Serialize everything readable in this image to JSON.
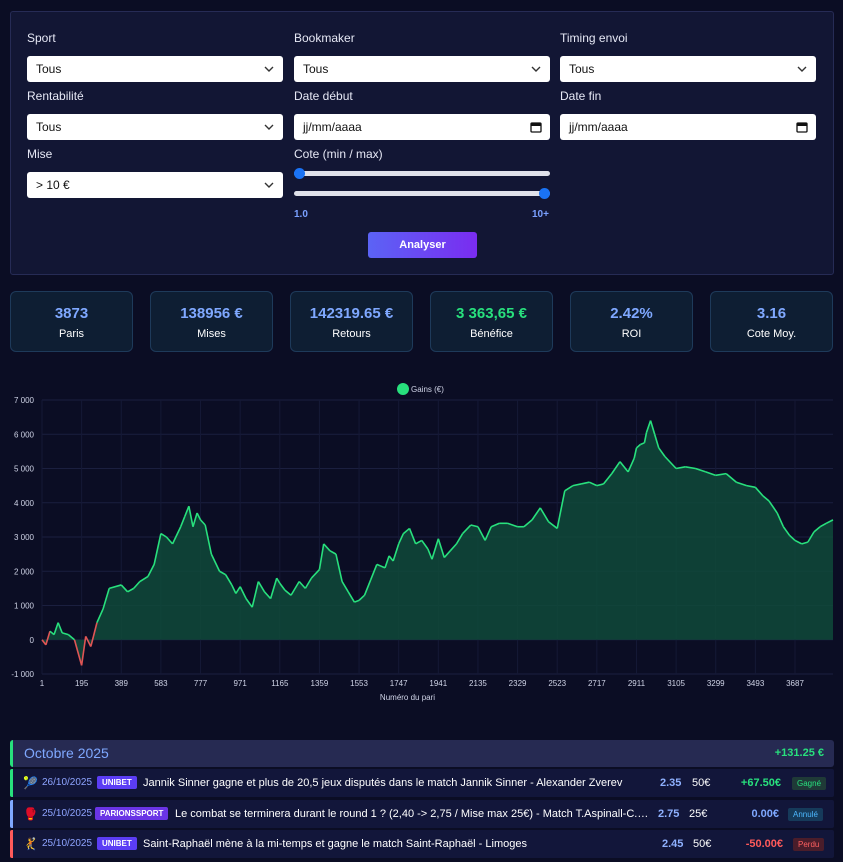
{
  "filters": {
    "sport": {
      "label": "Sport",
      "value": "Tous"
    },
    "bookmaker": {
      "label": "Bookmaker",
      "value": "Tous"
    },
    "timing": {
      "label": "Timing envoi",
      "value": "Tous"
    },
    "rentabilite": {
      "label": "Rentabilité",
      "value": "Tous"
    },
    "date_debut": {
      "label": "Date début",
      "value": "jj/mm/aaaa"
    },
    "date_fin": {
      "label": "Date fin",
      "value": "jj/mm/aaaa"
    },
    "mise": {
      "label": "Mise",
      "value": "> 10 €"
    },
    "cote": {
      "label": "Cote (min / max)",
      "min_label": "1.0",
      "max_label": "10+",
      "min_fraction": 0.0,
      "max_fraction": 1.0
    },
    "analyse_button": "Analyser"
  },
  "stats": [
    {
      "value": "3873",
      "label": "Paris"
    },
    {
      "value": "138956 €",
      "label": "Mises"
    },
    {
      "value": "142319.65 €",
      "label": "Retours"
    },
    {
      "value": "3 363,65 €",
      "label": "Bénéfice"
    },
    {
      "value": "2.42%",
      "label": "ROI"
    },
    {
      "value": "3.16",
      "label": "Cote Moy."
    }
  ],
  "chart_data": {
    "type": "area",
    "legend": "Gains (€)",
    "xlabel": "Numéro du pari",
    "ylabel": "",
    "ylim": [
      -1000,
      7000
    ],
    "xlim": [
      1,
      3873
    ],
    "y_ticks": [
      "7 000",
      "6 000",
      "5 000",
      "4 000",
      "3 000",
      "2 000",
      "1 000",
      "0",
      "-1 000"
    ],
    "x_ticks": [
      "1",
      "195",
      "389",
      "583",
      "777",
      "971",
      "1165",
      "1359",
      "1553",
      "1747",
      "1941",
      "2135",
      "2329",
      "2523",
      "2717",
      "2911",
      "3105",
      "3299",
      "3493",
      "3687"
    ],
    "colors": {
      "positive": "#28e07d",
      "negative": "#e05555"
    },
    "series": [
      {
        "name": "Gains (€)",
        "x": [
          1,
          20,
          40,
          60,
          80,
          100,
          130,
          160,
          195,
          215,
          240,
          270,
          300,
          330,
          389,
          420,
          450,
          480,
          520,
          550,
          583,
          610,
          640,
          680,
          700,
          720,
          740,
          760,
          777,
          800,
          830,
          870,
          900,
          930,
          950,
          971,
          1000,
          1030,
          1060,
          1090,
          1120,
          1150,
          1165,
          1190,
          1220,
          1260,
          1290,
          1320,
          1359,
          1380,
          1410,
          1440,
          1470,
          1500,
          1530,
          1553,
          1580,
          1610,
          1640,
          1680,
          1700,
          1720,
          1747,
          1770,
          1800,
          1830,
          1860,
          1890,
          1910,
          1941,
          1970,
          2000,
          2030,
          2060,
          2100,
          2135,
          2170,
          2200,
          2240,
          2280,
          2329,
          2360,
          2400,
          2440,
          2480,
          2523,
          2560,
          2600,
          2640,
          2680,
          2717,
          2750,
          2790,
          2830,
          2870,
          2900,
          2911,
          2930,
          2950,
          2960,
          2980,
          3000,
          3020,
          3050,
          3105,
          3150,
          3200,
          3250,
          3299,
          3350,
          3400,
          3450,
          3493,
          3530,
          3560,
          3600,
          3630,
          3660,
          3687,
          3720,
          3750,
          3780,
          3810,
          3840,
          3873
        ],
        "y": [
          0,
          -150,
          250,
          150,
          500,
          200,
          150,
          0,
          -750,
          100,
          -200,
          500,
          900,
          1500,
          1600,
          1400,
          1500,
          1700,
          1850,
          2200,
          3100,
          3000,
          2800,
          3300,
          3600,
          3900,
          3300,
          3700,
          3500,
          3350,
          2500,
          2000,
          1900,
          1600,
          1350,
          1550,
          1200,
          950,
          1700,
          1400,
          1200,
          1800,
          1650,
          1450,
          1300,
          1700,
          1500,
          1800,
          2050,
          2800,
          2600,
          2500,
          1700,
          1400,
          1100,
          1150,
          1300,
          1750,
          2200,
          2100,
          2450,
          2300,
          2800,
          3100,
          3250,
          2800,
          2900,
          2650,
          2350,
          2950,
          2400,
          2600,
          2800,
          3100,
          3350,
          3300,
          2900,
          3300,
          3400,
          3400,
          3300,
          3300,
          3500,
          3850,
          3450,
          3250,
          4350,
          4500,
          4550,
          4600,
          4500,
          4550,
          4850,
          5200,
          4900,
          5300,
          5600,
          5700,
          5750,
          6050,
          6400,
          6000,
          5600,
          5350,
          5000,
          5050,
          5000,
          4900,
          4800,
          4850,
          4600,
          4500,
          4450,
          4200,
          4050,
          3700,
          3300,
          3050,
          2900,
          2800,
          2850,
          3150,
          3300,
          3400,
          3500
        ]
      }
    ]
  },
  "month": {
    "name": "Octobre 2025",
    "total": "+131.25 €"
  },
  "bets": [
    {
      "icon": "tennis-icon",
      "glyph": "🎾",
      "date": "26/10/2025",
      "bookmaker": "UNIBET",
      "bk_color": "#5b3df5",
      "desc": "Jannik Sinner gagne et plus de 20,5 jeux disputés dans le match Jannik Sinner - Alexander Zverev",
      "cote": "2.35",
      "mise": "50€",
      "result": "+67.50€",
      "result_color": "#28e07d",
      "status": "Gagné",
      "status_color": "#28e07d",
      "status_bg": "#1f3a37",
      "border": "#28e07d"
    },
    {
      "icon": "boxing-icon",
      "glyph": "🥊",
      "date": "25/10/2025",
      "bookmaker": "PARIONSSPORT",
      "bk_color": "#6a34e6",
      "desc": "Le combat se terminera durant le round 1 ? (2,40 -> 2,75 / Mise max 25€) - Match T.Aspinall-C.Gan…",
      "cote": "2.75",
      "mise": "25€",
      "result": "0.00€",
      "result_color": "#7fa8ff",
      "status": "Annulé",
      "status_color": "#4db8ff",
      "status_bg": "#163a5a",
      "border": "#7fa8ff"
    },
    {
      "icon": "handball-icon",
      "glyph": "🤾",
      "date": "25/10/2025",
      "bookmaker": "UNIBET",
      "bk_color": "#5b3df5",
      "desc": "Saint-Raphaël mène à la mi-temps et gagne le match Saint-Raphaël - Limoges",
      "cote": "2.45",
      "mise": "50€",
      "result": "-50.00€",
      "result_color": "#ff5a5a",
      "status": "Perdu",
      "status_color": "#ff6060",
      "status_bg": "#4a1d2a",
      "border": "#ff5a5a"
    }
  ]
}
